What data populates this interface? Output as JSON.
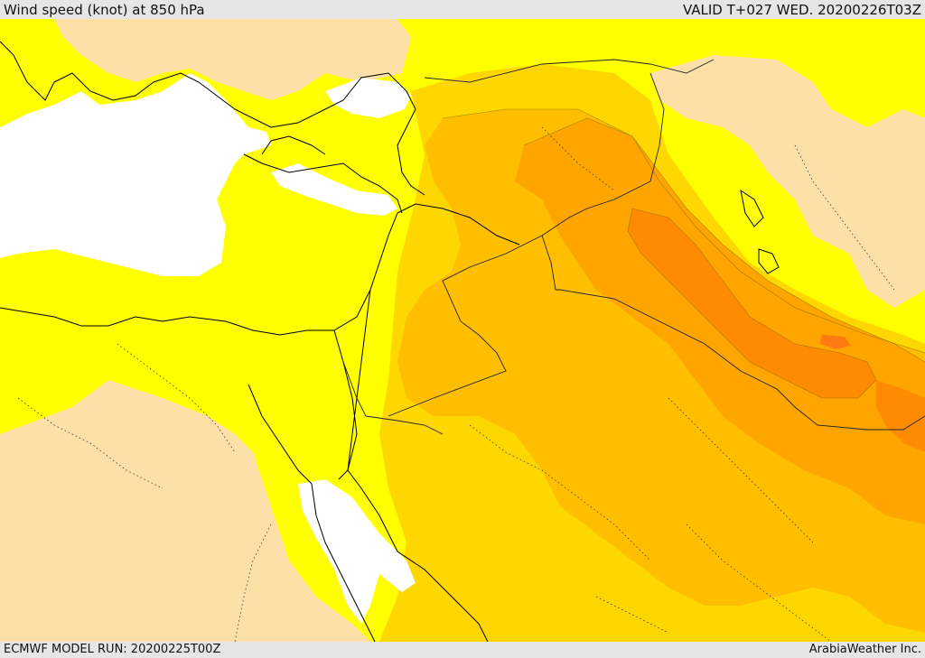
{
  "header": {
    "title": "Wind speed (knot) at 850 hPa",
    "valid": "VALID T+027 WED. 20200226T03Z"
  },
  "footer": {
    "model_run": "ECMWF MODEL RUN: 20200225T00Z",
    "credit": "ArabiaWeather Inc."
  },
  "map": {
    "colors": {
      "calm_white": "#ffffff",
      "band_tan": "#fddfa8",
      "band_yellow": "#ffff00",
      "band_gold": "#ffd700",
      "band_amber": "#ffbf00",
      "band_orange": "#ffa500",
      "band_dark_orange": "#ff8c00",
      "band_red_orange": "#ff7a10",
      "coastline": "#000000"
    }
  }
}
